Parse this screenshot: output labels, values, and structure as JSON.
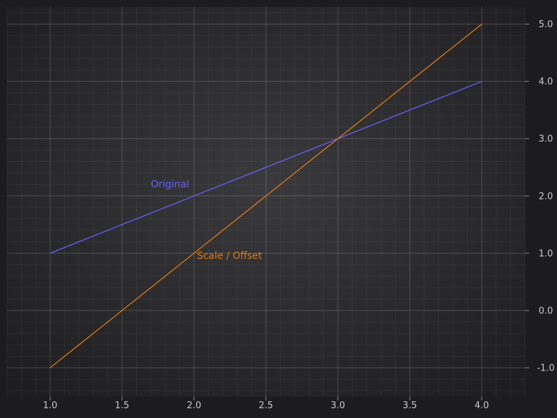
{
  "chart_data": {
    "type": "line",
    "title": "",
    "xlabel": "",
    "ylabel": "",
    "xlim": [
      0.7,
      4.3
    ],
    "ylim": [
      -1.5,
      5.3
    ],
    "x_ticks": [
      1.0,
      1.5,
      2.0,
      2.5,
      3.0,
      3.5,
      4.0
    ],
    "x_tick_labels": [
      "1.0",
      "1.5",
      "2.0",
      "2.5",
      "3.0",
      "3.5",
      "4.0"
    ],
    "y_ticks": [
      -1.0,
      0.0,
      1.0,
      2.0,
      3.0,
      4.0,
      5.0
    ],
    "y_tick_labels": [
      "-1.0",
      "0.0",
      "1.0",
      "2.0",
      "3.0",
      "4.0",
      "5.0"
    ],
    "grid": true,
    "y_axis_side": "right",
    "series": [
      {
        "name": "Original",
        "color": "#6a5cff",
        "x": [
          1,
          2,
          3,
          4
        ],
        "y": [
          1,
          2,
          3,
          4
        ],
        "label_anchor": {
          "x": 1.7,
          "y": 2.15
        }
      },
      {
        "name": "Scale / Offset",
        "color": "#e07a10",
        "x": [
          1,
          2,
          3,
          4
        ],
        "y": [
          -1,
          1,
          3,
          5
        ],
        "label_anchor": {
          "x": 2.02,
          "y": 0.9
        }
      }
    ]
  }
}
